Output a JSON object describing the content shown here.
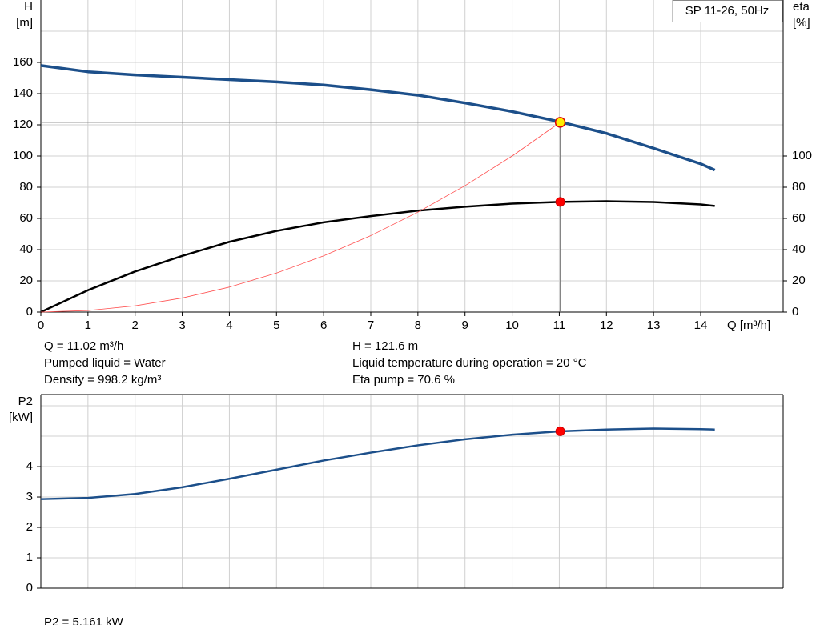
{
  "chart_data": [
    {
      "type": "line",
      "model_label": "SP 11-26, 50Hz",
      "y_label": [
        "H",
        "[m]"
      ],
      "y2_label": [
        "eta",
        "[%]"
      ],
      "x_label": "Q [m³/h]",
      "xlim": [
        0,
        15.75
      ],
      "xticks": [
        0,
        1,
        2,
        3,
        4,
        5,
        6,
        7,
        8,
        9,
        10,
        11,
        12,
        13,
        14
      ],
      "ylim": [
        0,
        200
      ],
      "yticks": [
        0,
        20,
        40,
        60,
        80,
        100,
        120,
        140,
        160
      ],
      "y2lim": [
        0,
        200
      ],
      "y2ticks": [
        0,
        20,
        40,
        60,
        80,
        100
      ],
      "grid": true,
      "series": [
        {
          "color": "#1c4f8a",
          "width": 3.5,
          "axis": "y",
          "x": [
            0,
            1,
            2,
            3,
            4,
            5,
            6,
            7,
            8,
            9,
            10,
            11,
            12,
            13,
            14,
            14.3
          ],
          "values": [
            158,
            154,
            152,
            150.5,
            149,
            147.5,
            145.5,
            142.5,
            139,
            134,
            128.5,
            122,
            114.5,
            105,
            95,
            91
          ]
        },
        {
          "color": "#000000",
          "width": 2.5,
          "axis": "y2",
          "x": [
            0,
            1,
            2,
            3,
            4,
            5,
            6,
            7,
            8,
            9,
            10,
            11,
            12,
            13,
            14,
            14.3
          ],
          "values": [
            0,
            14,
            26,
            36,
            45,
            52,
            57.5,
            61.5,
            65,
            67.5,
            69.5,
            70.6,
            71,
            70.5,
            69,
            68
          ]
        },
        {
          "color": "#ff5050",
          "width": 0.8,
          "axis": "y",
          "x": [
            0,
            1,
            2,
            3,
            4,
            5,
            6,
            7,
            8,
            9,
            10,
            11.02
          ],
          "values": [
            0,
            1,
            4,
            9,
            16,
            25,
            36,
            49,
            64,
            81,
            100,
            121.6
          ]
        }
      ],
      "duty_point": {
        "x": 11.02,
        "H": 121.6,
        "eta": 70.6
      },
      "info": [
        "Q = 11.02 m³/h",
        "Pumped liquid = Water",
        "Density = 998.2 kg/m³",
        "H = 121.6 m",
        "Liquid temperature during operation = 20 °C",
        "Eta pump = 70.6 %"
      ]
    },
    {
      "type": "line",
      "y_label": [
        "P2",
        "[kW]"
      ],
      "xlim": [
        0,
        15.75
      ],
      "ylim": [
        0,
        6.37
      ],
      "yticks": [
        0,
        1,
        2,
        3,
        4
      ],
      "grid": true,
      "series": [
        {
          "color": "#1c4f8a",
          "width": 2.5,
          "axis": "y",
          "x": [
            0,
            1,
            2,
            3,
            4,
            5,
            6,
            7,
            8,
            9,
            10,
            11,
            12,
            13,
            14,
            14.3
          ],
          "values": [
            2.93,
            2.97,
            3.1,
            3.32,
            3.6,
            3.9,
            4.2,
            4.46,
            4.7,
            4.9,
            5.05,
            5.16,
            5.22,
            5.25,
            5.23,
            5.22
          ]
        }
      ],
      "duty_point": {
        "x": 11.02,
        "P2": 5.161
      },
      "info": [
        "P2 = 5.161 kW"
      ]
    }
  ]
}
